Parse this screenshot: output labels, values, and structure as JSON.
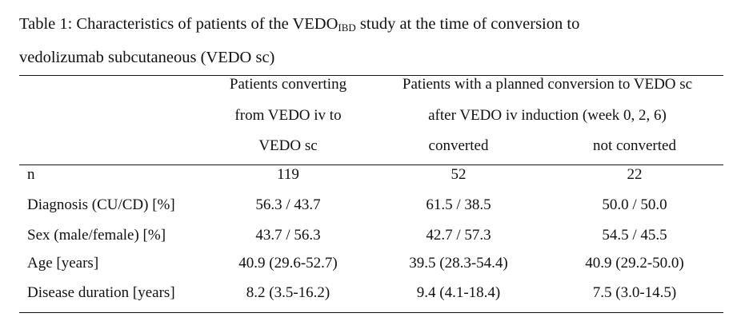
{
  "caption": {
    "prefix": "Table 1: Characteristics of patients of the VEDO",
    "subscript": "IBD",
    "suffix": " study at the time of conversion to",
    "line2": "vedolizumab subcutaneous (VEDO sc)"
  },
  "header": {
    "col1": [
      "Patients converting",
      "from VEDO iv to",
      "VEDO sc"
    ],
    "group": [
      "Patients with a planned conversion to VEDO sc",
      "after VEDO iv induction (week 0, 2, 6)"
    ],
    "col2": "converted",
    "col3": "not converted"
  },
  "rows": [
    {
      "label": "n",
      "c1": "119",
      "c2": "52",
      "c3": "22"
    },
    {
      "label": "Diagnosis (CU/CD) [%]",
      "c1": "56.3 / 43.7",
      "c2": "61.5 / 38.5",
      "c3": "50.0 / 50.0"
    },
    {
      "label": "Sex (male/female) [%]",
      "c1": "43.7 / 56.3",
      "c2": "42.7 / 57.3",
      "c3": "54.5 / 45.5"
    },
    {
      "label": "Age [years]",
      "c1": "40.9 (29.6-52.7)",
      "c2": "39.5 (28.3-54.4)",
      "c3": "40.9 (29.2-50.0)"
    },
    {
      "label": "Disease duration [years]",
      "c1": "8.2 (3.5-16.2)",
      "c2": "9.4 (4.1-18.4)",
      "c3": "7.5 (3.0-14.5)"
    }
  ]
}
